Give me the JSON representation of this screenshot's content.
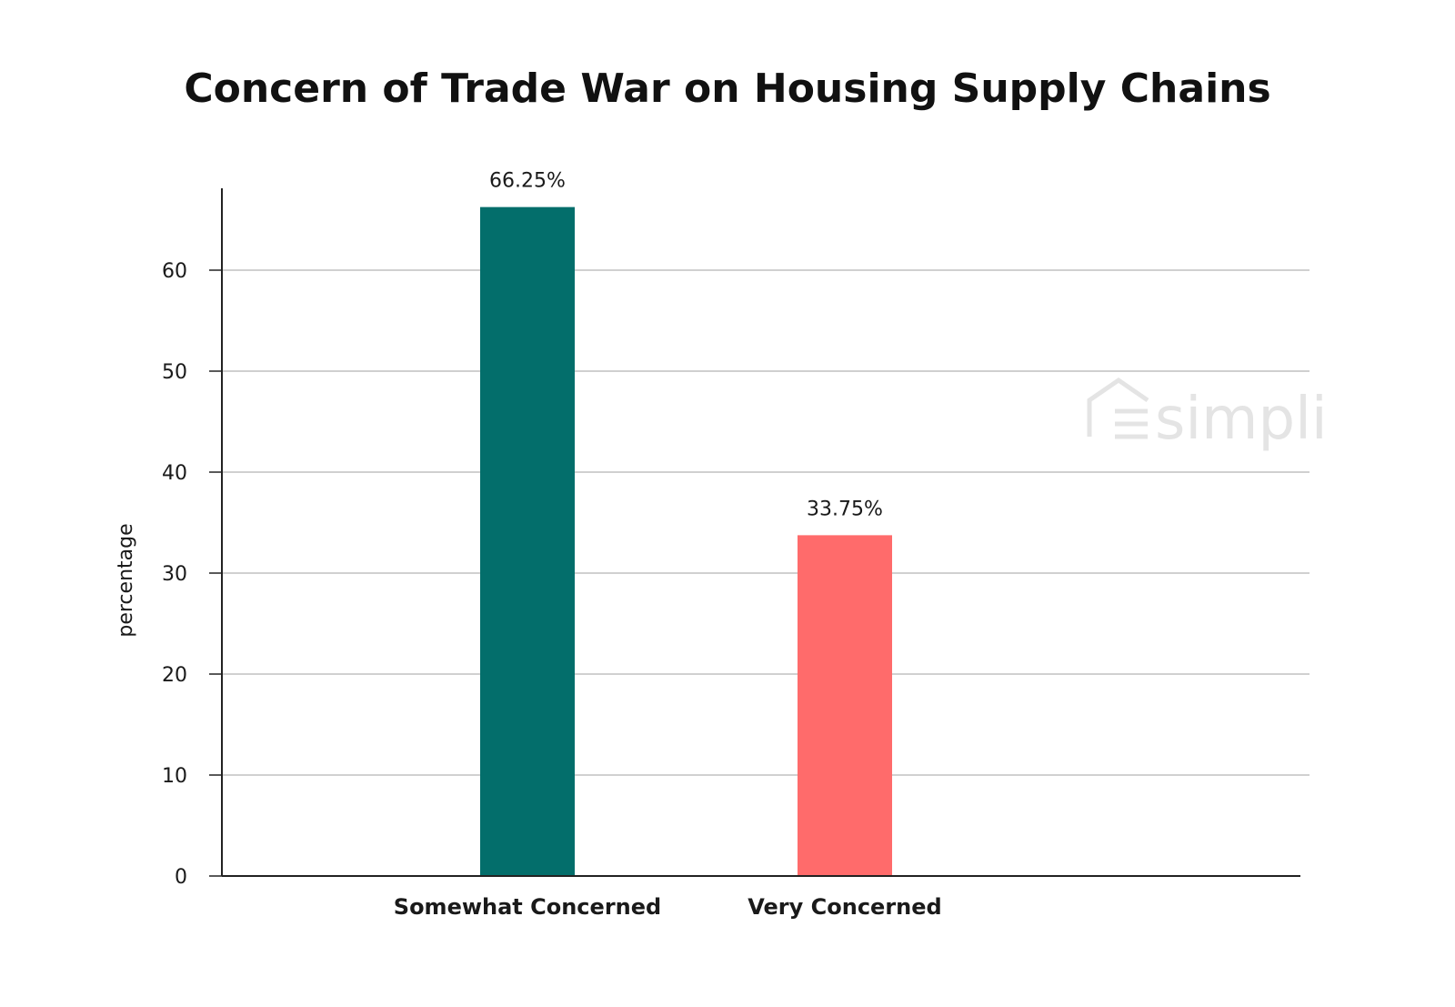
{
  "chart_data": {
    "type": "bar",
    "title": "Concern of Trade War on Housing Supply Chains",
    "xlabel": "",
    "ylabel": "percentage",
    "categories": [
      "Somewhat Concerned",
      "Very Concerned"
    ],
    "values": [
      66.25,
      33.75
    ],
    "data_labels": [
      "66.25%",
      "33.75%"
    ],
    "colors": [
      "#036e6b",
      "#ff6b6b"
    ],
    "ylim": [
      0,
      70
    ],
    "yticks": [
      0,
      10,
      20,
      30,
      40,
      50,
      60
    ],
    "grid": true,
    "legend": "none"
  },
  "watermark": {
    "text": "simpli",
    "icon": "house-logo-icon"
  }
}
